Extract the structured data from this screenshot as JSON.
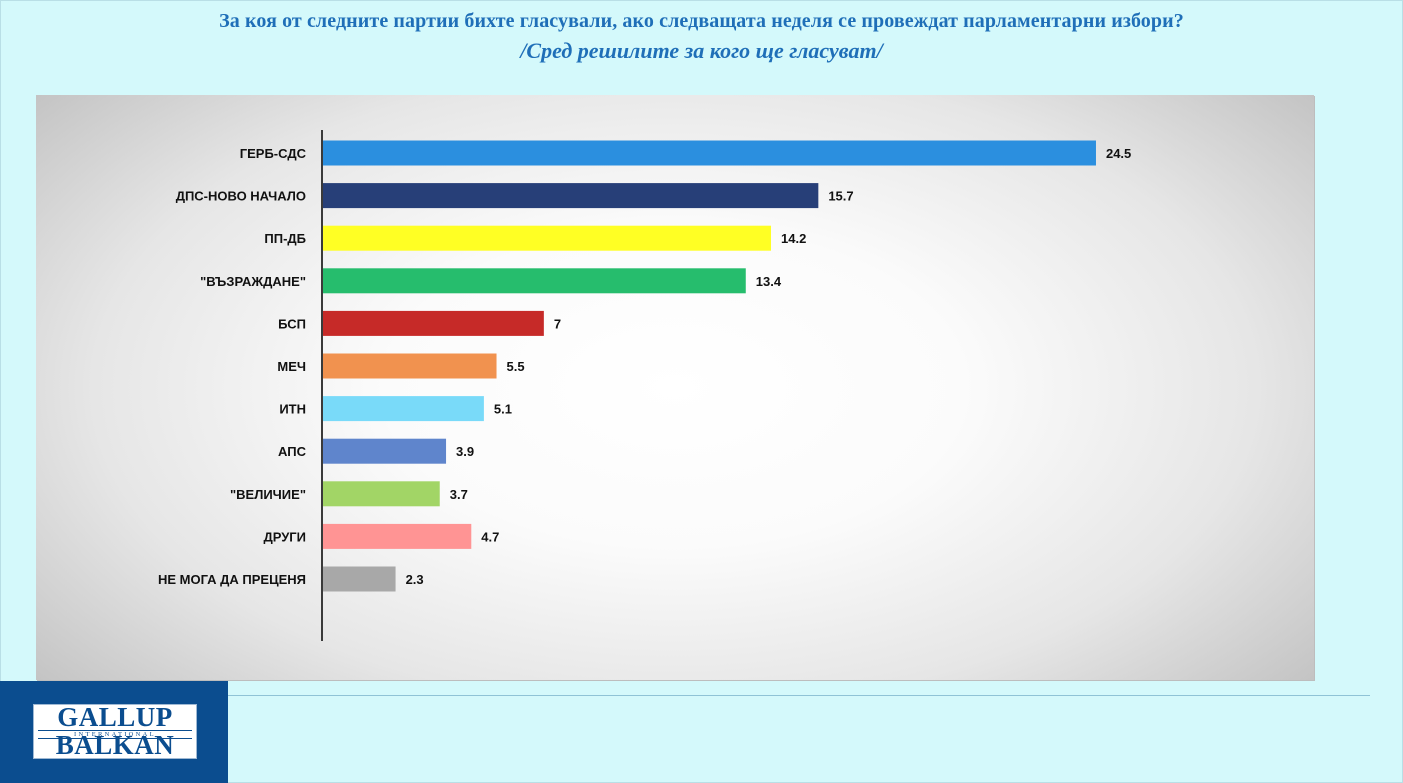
{
  "title": "За коя от следните партии бихте  гласували,  ако следващата неделя се провеждат парламентарни избори?",
  "subtitle": "/Сред решилите за кого ще гласуват/",
  "chart_data": {
    "type": "bar",
    "orientation": "horizontal",
    "categories": [
      "ГЕРБ-СДС",
      "ДПС-НОВО НАЧАЛО",
      "ПП-ДБ",
      "\"ВЪЗРАЖДАНЕ\"",
      "БСП",
      "МЕЧ",
      "ИТН",
      "АПС",
      "\"ВЕЛИЧИЕ\"",
      "ДРУГИ",
      "НЕ МОГА ДА ПРЕЦЕНЯ"
    ],
    "values": [
      24.5,
      15.7,
      14.2,
      13.4,
      7,
      5.5,
      5.1,
      3.9,
      3.7,
      4.7,
      2.3
    ],
    "value_labels": [
      "24.5",
      "15.7",
      "14.2",
      "13.4",
      "7",
      "5.5",
      "5.1",
      "3.9",
      "3.7",
      "4.7",
      "2.3"
    ],
    "colors": [
      "#2b8fdf",
      "#273f78",
      "#ffff24",
      "#26bd6d",
      "#c62a28",
      "#f1924f",
      "#79daf9",
      "#5f85cc",
      "#a2d566",
      "#ff9494",
      "#a8a8a8"
    ],
    "xlim": [
      0,
      25
    ],
    "grid": false,
    "legend": "none",
    "data_labels": true
  },
  "logo": {
    "top": "GALLUP",
    "middle": "INTERNATIONAL",
    "bottom": "BALKAN",
    "color": "#0b4d8f"
  }
}
